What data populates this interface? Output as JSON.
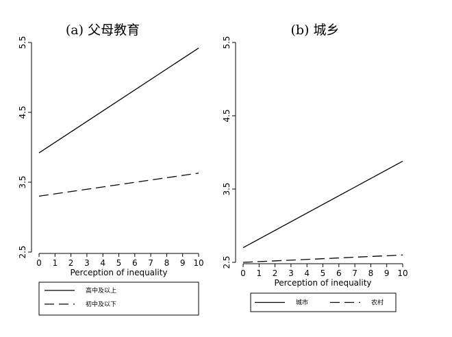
{
  "chart_data": [
    {
      "type": "line",
      "title": "(a) 父母教育",
      "x_label": "Perception of inequality",
      "x": [
        0,
        10
      ],
      "xlim": [
        0,
        10
      ],
      "xticks": [
        0,
        1,
        2,
        3,
        4,
        5,
        6,
        7,
        8,
        9,
        10
      ],
      "ylim": [
        2.5,
        5.5
      ],
      "yticks": [
        2.5,
        3.5,
        4.5,
        5.5
      ],
      "series": [
        {
          "name": "高中及以上",
          "color": "#000000",
          "dash": "solid",
          "values": [
            3.92,
            5.42
          ]
        },
        {
          "name": "初中及以下",
          "color": "#000000",
          "dash": "dashed",
          "values": [
            3.3,
            3.63
          ]
        }
      ]
    },
    {
      "type": "line",
      "title": "(b) 城乡",
      "x_label": "Perception of inequality",
      "x": [
        0,
        10
      ],
      "xlim": [
        0,
        10
      ],
      "xticks": [
        0,
        1,
        2,
        3,
        4,
        5,
        6,
        7,
        8,
        9,
        10
      ],
      "ylim": [
        2.5,
        5.5
      ],
      "yticks": [
        2.5,
        3.5,
        4.5,
        5.5
      ],
      "series": [
        {
          "name": "城市",
          "color": "#000000",
          "dash": "solid",
          "values": [
            2.7,
            3.88
          ]
        },
        {
          "name": "农村",
          "color": "#000000",
          "dash": "dashed",
          "values": [
            2.5,
            2.6
          ]
        }
      ]
    }
  ]
}
